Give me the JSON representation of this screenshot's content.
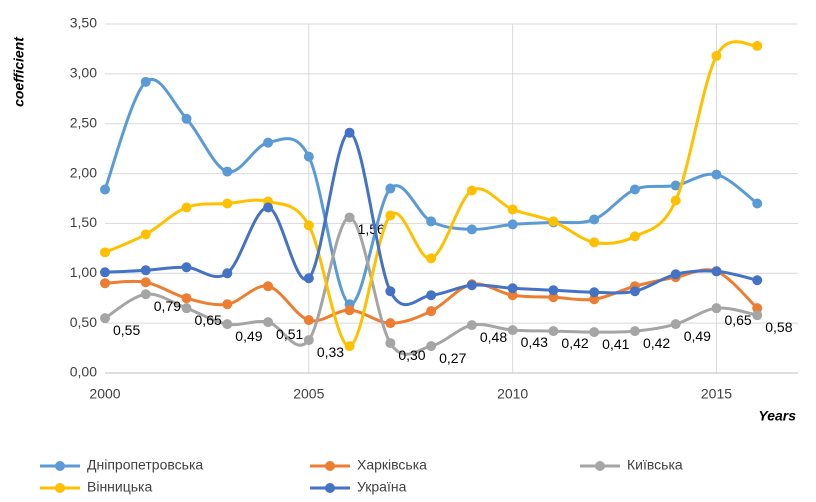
{
  "chart_data": {
    "type": "line",
    "x": [
      2000,
      2001,
      2002,
      2003,
      2004,
      2005,
      2006,
      2007,
      2008,
      2009,
      2010,
      2011,
      2012,
      2013,
      2014,
      2015,
      2016
    ],
    "x_label": "Years",
    "y_label": "coefficient",
    "xlim": [
      2000,
      2017
    ],
    "xticks": [
      2000,
      2005,
      2010,
      2015
    ],
    "ylim": [
      0,
      3.5
    ],
    "yticks": [
      {
        "value": 0,
        "label": "0,00"
      },
      {
        "value": 0.5,
        "label": "0,50"
      },
      {
        "value": 1,
        "label": "1,00"
      },
      {
        "value": 1.5,
        "label": "1,50"
      },
      {
        "value": 2,
        "label": "2,00"
      },
      {
        "value": 2.5,
        "label": "2,50"
      },
      {
        "value": 3,
        "label": "3,00"
      },
      {
        "value": 3.5,
        "label": "3,50"
      }
    ],
    "grid": true,
    "smooth": true,
    "legend": "bottom",
    "series": [
      {
        "name": "Дніпропетровська",
        "color": "#5b9bd5",
        "values": [
          1.84,
          2.92,
          2.55,
          2.02,
          2.31,
          2.17,
          0.69,
          1.85,
          1.52,
          1.44,
          1.49,
          1.51,
          1.54,
          1.84,
          1.88,
          1.99,
          1.7
        ]
      },
      {
        "name": "Харківська",
        "color": "#ed7d31",
        "values": [
          0.9,
          0.91,
          0.75,
          0.69,
          0.87,
          0.53,
          0.63,
          0.5,
          0.62,
          0.89,
          0.78,
          0.76,
          0.74,
          0.87,
          0.96,
          1.02,
          0.65
        ]
      },
      {
        "name": "Київська",
        "color": "#a5a5a5",
        "values": [
          0.55,
          0.79,
          0.65,
          0.49,
          0.51,
          0.33,
          1.56,
          0.3,
          0.27,
          0.48,
          0.43,
          0.42,
          0.41,
          0.42,
          0.49,
          0.65,
          0.58
        ],
        "value_labels": [
          "0,55",
          "0,79",
          "0,65",
          "0,49",
          "0,51",
          "0,33",
          "1,56",
          "0,30",
          "0,27",
          "0,48",
          "0,43",
          "0,42",
          "0,41",
          "0,42",
          "0,49",
          "0,65",
          "0,58"
        ]
      },
      {
        "name": "Вінницька",
        "color": "#ffc000",
        "values": [
          1.21,
          1.39,
          1.66,
          1.7,
          1.72,
          1.48,
          0.27,
          1.58,
          1.15,
          1.83,
          1.64,
          1.52,
          1.31,
          1.37,
          1.73,
          3.18,
          3.28
        ]
      },
      {
        "name": "Україна",
        "color": "#4472c4",
        "values": [
          1.01,
          1.03,
          1.06,
          1.0,
          1.66,
          0.95,
          2.41,
          0.82,
          0.78,
          0.88,
          0.85,
          0.83,
          0.81,
          0.82,
          0.99,
          1.02,
          0.93
        ]
      }
    ]
  }
}
